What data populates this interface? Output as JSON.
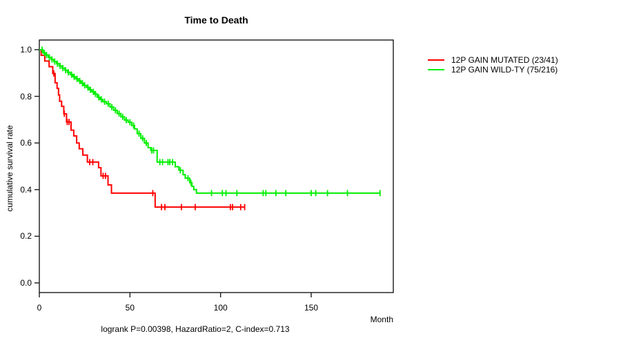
{
  "chart_data": {
    "type": "line",
    "subtype": "kaplan-meier-step",
    "title": "Time to Death",
    "xlabel": "Month",
    "ylabel": "cumulative survival rate",
    "annotation": "logrank P=0.00398, HazardRatio=2, C-index=0.713",
    "xticks": [
      0,
      50,
      100,
      150
    ],
    "yticks": [
      0.0,
      0.2,
      0.4,
      0.6,
      0.8,
      1.0
    ],
    "xlim": [
      0,
      195
    ],
    "ylim": [
      0.0,
      1.0
    ],
    "grid": false,
    "legend_position": "right-outside",
    "axis_color": "#1a1a1a",
    "series": [
      {
        "name": "12P GAIN MUTATED (23/41)",
        "color": "#ff0000",
        "end_month": 113.3,
        "steps": [
          [
            0,
            1.0
          ],
          [
            1,
            0.976
          ],
          [
            3,
            0.951
          ],
          [
            5.4,
            0.927
          ],
          [
            7.4,
            0.898
          ],
          [
            8.7,
            0.858
          ],
          [
            9.8,
            0.834
          ],
          [
            10.6,
            0.806
          ],
          [
            11.2,
            0.779
          ],
          [
            12.3,
            0.757
          ],
          [
            13.5,
            0.725
          ],
          [
            15,
            0.69
          ],
          [
            17.5,
            0.655
          ],
          [
            19,
            0.63
          ],
          [
            20.6,
            0.6
          ],
          [
            22,
            0.575
          ],
          [
            24,
            0.548
          ],
          [
            26.5,
            0.518
          ],
          [
            32.7,
            0.494
          ],
          [
            34,
            0.459
          ],
          [
            37.9,
            0.42
          ],
          [
            39.8,
            0.385
          ],
          [
            63.9,
            0.325
          ]
        ],
        "censors": [
          [
            8,
            0.898
          ],
          [
            13.8,
            0.725
          ],
          [
            15.4,
            0.69
          ],
          [
            16.4,
            0.69
          ],
          [
            27.8,
            0.518
          ],
          [
            29.5,
            0.518
          ],
          [
            35.2,
            0.459
          ],
          [
            36.5,
            0.459
          ],
          [
            62.6,
            0.385
          ],
          [
            67.4,
            0.325
          ],
          [
            69.3,
            0.325
          ],
          [
            78.4,
            0.325
          ],
          [
            86,
            0.325
          ],
          [
            105.4,
            0.325
          ],
          [
            106.6,
            0.325
          ],
          [
            111.1,
            0.325
          ],
          [
            113.3,
            0.325
          ]
        ]
      },
      {
        "name": "12P GAIN WILD-TY (75/216)",
        "color": "#00ee00",
        "end_month": 188,
        "steps": [
          [
            0,
            1.0
          ],
          [
            2,
            0.986
          ],
          [
            3.5,
            0.977
          ],
          [
            5,
            0.967
          ],
          [
            6.5,
            0.958
          ],
          [
            8,
            0.949
          ],
          [
            9.5,
            0.94
          ],
          [
            11,
            0.93
          ],
          [
            12.5,
            0.921
          ],
          [
            14,
            0.912
          ],
          [
            15.5,
            0.903
          ],
          [
            17,
            0.893
          ],
          [
            18.5,
            0.884
          ],
          [
            20,
            0.875
          ],
          [
            21.5,
            0.866
          ],
          [
            23,
            0.856
          ],
          [
            24.5,
            0.847
          ],
          [
            26,
            0.838
          ],
          [
            27.5,
            0.828
          ],
          [
            29,
            0.819
          ],
          [
            30.5,
            0.81
          ],
          [
            32,
            0.796
          ],
          [
            33.5,
            0.787
          ],
          [
            35,
            0.777
          ],
          [
            37,
            0.768
          ],
          [
            39,
            0.754
          ],
          [
            41,
            0.74
          ],
          [
            43,
            0.726
          ],
          [
            45,
            0.712
          ],
          [
            47,
            0.698
          ],
          [
            49,
            0.689
          ],
          [
            51,
            0.675
          ],
          [
            52.5,
            0.66
          ],
          [
            54,
            0.64
          ],
          [
            56,
            0.62
          ],
          [
            58,
            0.6
          ],
          [
            60,
            0.58
          ],
          [
            61.5,
            0.568
          ],
          [
            65,
            0.518
          ],
          [
            75,
            0.498
          ],
          [
            77,
            0.483
          ],
          [
            79.3,
            0.464
          ],
          [
            80.5,
            0.449
          ],
          [
            83,
            0.43
          ],
          [
            84.2,
            0.414
          ],
          [
            85.2,
            0.4
          ],
          [
            86.7,
            0.385
          ]
        ],
        "censors": [
          [
            1.5,
            1.0
          ],
          [
            2.8,
            0.986
          ],
          [
            4,
            0.977
          ],
          [
            5.5,
            0.967
          ],
          [
            7,
            0.958
          ],
          [
            8.5,
            0.949
          ],
          [
            10,
            0.94
          ],
          [
            11.5,
            0.93
          ],
          [
            13,
            0.921
          ],
          [
            14.5,
            0.912
          ],
          [
            16,
            0.903
          ],
          [
            17.8,
            0.893
          ],
          [
            19.2,
            0.884
          ],
          [
            20.8,
            0.875
          ],
          [
            22.3,
            0.866
          ],
          [
            23.8,
            0.856
          ],
          [
            25,
            0.847
          ],
          [
            26.8,
            0.838
          ],
          [
            28.2,
            0.828
          ],
          [
            29.8,
            0.819
          ],
          [
            31,
            0.81
          ],
          [
            32.8,
            0.796
          ],
          [
            34.2,
            0.787
          ],
          [
            36,
            0.777
          ],
          [
            38,
            0.768
          ],
          [
            40,
            0.754
          ],
          [
            42,
            0.74
          ],
          [
            44,
            0.726
          ],
          [
            46,
            0.712
          ],
          [
            48,
            0.698
          ],
          [
            50,
            0.689
          ],
          [
            52,
            0.675
          ],
          [
            55,
            0.64
          ],
          [
            57,
            0.62
          ],
          [
            59,
            0.6
          ],
          [
            62,
            0.568
          ],
          [
            63,
            0.568
          ],
          [
            66.5,
            0.518
          ],
          [
            68,
            0.518
          ],
          [
            71,
            0.518
          ],
          [
            72,
            0.518
          ],
          [
            73.5,
            0.518
          ],
          [
            77.8,
            0.483
          ],
          [
            82,
            0.449
          ],
          [
            83.6,
            0.43
          ],
          [
            95,
            0.385
          ],
          [
            101,
            0.385
          ],
          [
            103,
            0.385
          ],
          [
            109,
            0.385
          ],
          [
            123.5,
            0.385
          ],
          [
            125,
            0.385
          ],
          [
            130.5,
            0.385
          ],
          [
            136,
            0.385
          ],
          [
            150,
            0.385
          ],
          [
            152.5,
            0.385
          ],
          [
            159,
            0.385
          ],
          [
            170,
            0.385
          ],
          [
            188,
            0.385
          ]
        ]
      }
    ]
  }
}
